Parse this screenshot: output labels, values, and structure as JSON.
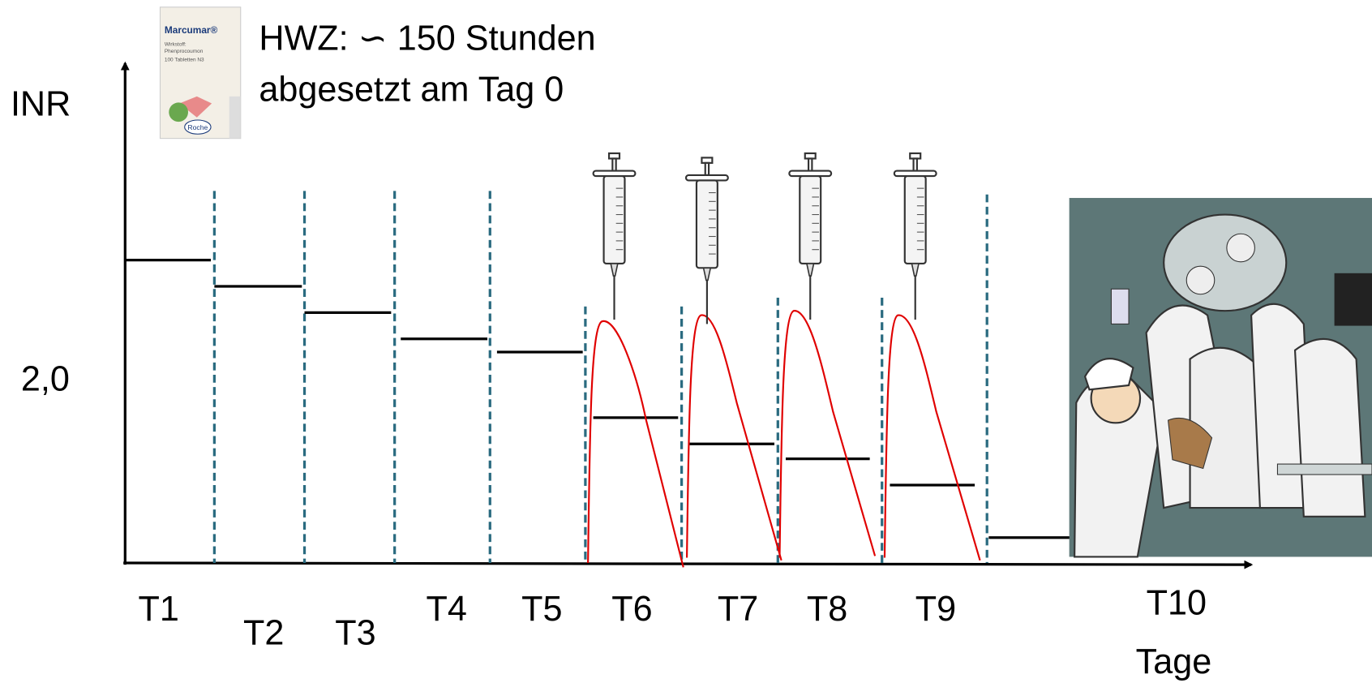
{
  "header": {
    "line1": "HWZ: ∽ 150 Stunden",
    "line2": "abgesetzt am Tag 0"
  },
  "package": {
    "brand": "Marcumar®",
    "ingredient_label": "Wirkstoff:",
    "ingredient": "Phenprocoumon",
    "count": "100 Tabletten N3",
    "maker": "Roche"
  },
  "axes": {
    "y_label": "INR",
    "y_mark": "2,0",
    "x_label": "Tage",
    "days": [
      "T1",
      "T2",
      "T3",
      "T4",
      "T5",
      "T6",
      "T7",
      "T8",
      "T9",
      "T10"
    ]
  }
}
